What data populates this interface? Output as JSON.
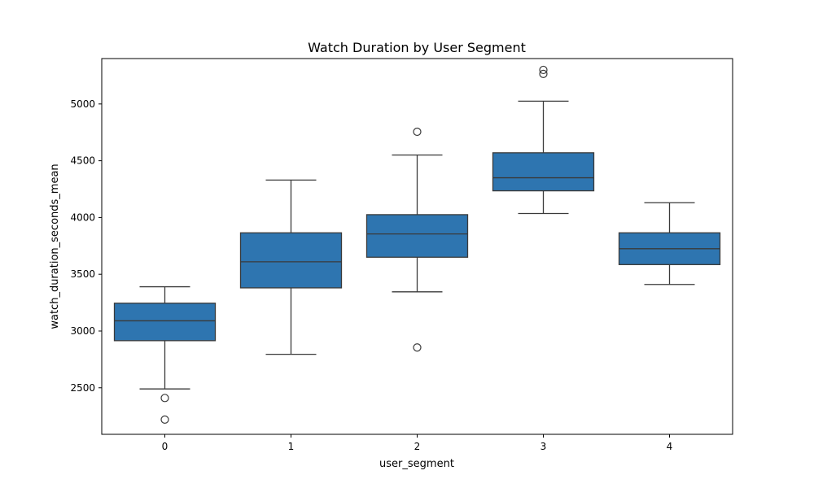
{
  "chart_data": {
    "type": "box",
    "title": "Watch Duration by User Segment",
    "xlabel": "user_segment",
    "ylabel": "watch_duration_seconds_mean",
    "categories": [
      "0",
      "1",
      "2",
      "3",
      "4"
    ],
    "yticks": [
      2500,
      3000,
      3500,
      4000,
      4500,
      5000
    ],
    "ylim": [
      2090,
      5400
    ],
    "box_color": "#2e75b0",
    "line_color": "#3a3a3a",
    "boxes": [
      {
        "category": "0",
        "whisker_low": 2490,
        "q1": 2915,
        "median": 3090,
        "q3": 3245,
        "whisker_high": 3390,
        "outliers": [
          2410,
          2220
        ]
      },
      {
        "category": "1",
        "whisker_low": 2795,
        "q1": 3380,
        "median": 3610,
        "q3": 3865,
        "whisker_high": 4330,
        "outliers": []
      },
      {
        "category": "2",
        "whisker_low": 3345,
        "q1": 3650,
        "median": 3855,
        "q3": 4025,
        "whisker_high": 4550,
        "outliers": [
          4755,
          2855
        ]
      },
      {
        "category": "3",
        "whisker_low": 4035,
        "q1": 4235,
        "median": 4350,
        "q3": 4570,
        "whisker_high": 5025,
        "outliers": [
          5300,
          5265
        ]
      },
      {
        "category": "4",
        "whisker_low": 3410,
        "q1": 3585,
        "median": 3725,
        "q3": 3865,
        "whisker_high": 4130,
        "outliers": []
      }
    ]
  }
}
